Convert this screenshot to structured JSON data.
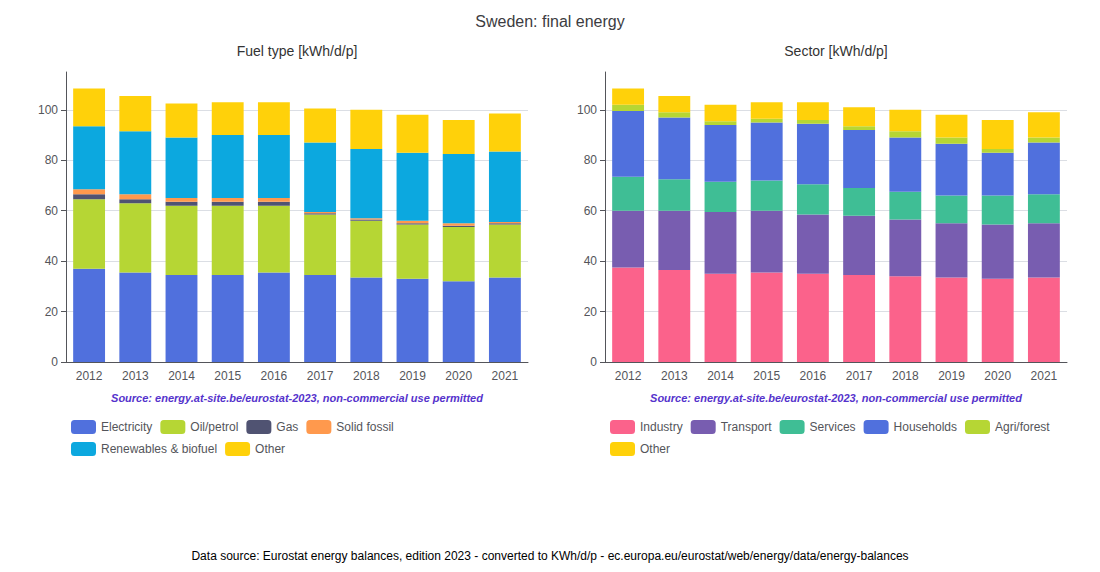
{
  "title": "Sweden: final energy",
  "annotations": [
    "Data source: Eurostat energy balances, edition 2023 - converted to KWh/d/p - ec.europa.eu/eurostat/web/energy/data/energy-balances"
  ],
  "chart_data": [
    {
      "type": "bar",
      "title": "Fuel type [kWh/d/p]",
      "stacked": true,
      "grid": true,
      "legend": "bottom",
      "categories": [
        2012,
        2013,
        2014,
        2015,
        2016,
        2017,
        2018,
        2019,
        2020,
        2021
      ],
      "series": [
        {
          "name": "Electricity",
          "values": [
            37.0,
            35.5,
            34.5,
            34.5,
            35.5,
            34.5,
            33.5,
            33.0,
            32.0,
            33.5
          ]
        },
        {
          "name": "Oil/petrol",
          "values": [
            27.5,
            27.5,
            27.5,
            27.5,
            26.5,
            24.0,
            22.5,
            21.5,
            21.5,
            21.0
          ]
        },
        {
          "name": "Gas",
          "values": [
            2.0,
            1.5,
            1.5,
            1.5,
            1.5,
            0.5,
            0.5,
            0.5,
            0.5,
            0.5
          ]
        },
        {
          "name": "Solid fossil",
          "values": [
            2.0,
            2.0,
            1.5,
            1.5,
            1.5,
            0.5,
            0.5,
            1.0,
            1.0,
            0.5
          ]
        },
        {
          "name": "Renewables & biofuel",
          "values": [
            25.0,
            25.0,
            24.0,
            25.0,
            25.0,
            27.5,
            27.5,
            27.0,
            27.5,
            28.0
          ]
        },
        {
          "name": "Other",
          "values": [
            15.0,
            14.0,
            13.5,
            13.0,
            13.0,
            13.5,
            15.5,
            15.0,
            13.5,
            15.0
          ]
        }
      ],
      "ylim": [
        0,
        115
      ],
      "yticks": [
        0,
        20,
        40,
        60,
        80,
        100
      ],
      "annotations": [
        "Source: energy.at-site.be/eurostat-2023, non-commercial use permitted"
      ]
    },
    {
      "type": "bar",
      "title": "Sector [kWh/d/p]",
      "stacked": true,
      "grid": true,
      "legend": "bottom",
      "categories": [
        2012,
        2013,
        2014,
        2015,
        2016,
        2017,
        2018,
        2019,
        2020,
        2021
      ],
      "series": [
        {
          "name": "Industry",
          "values": [
            37.5,
            36.5,
            35.0,
            35.5,
            35.0,
            34.5,
            34.0,
            33.5,
            33.0,
            33.5
          ]
        },
        {
          "name": "Transport",
          "values": [
            22.5,
            23.5,
            24.5,
            24.5,
            23.5,
            23.5,
            22.5,
            21.5,
            21.5,
            21.5
          ]
        },
        {
          "name": "Services",
          "values": [
            13.5,
            12.5,
            12.0,
            12.0,
            12.0,
            11.0,
            11.0,
            11.0,
            11.5,
            11.5
          ]
        },
        {
          "name": "Households",
          "values": [
            26.0,
            24.5,
            22.5,
            23.0,
            24.0,
            23.0,
            21.5,
            20.5,
            17.0,
            20.5
          ]
        },
        {
          "name": "Agri/forest",
          "values": [
            2.5,
            2.0,
            1.5,
            1.5,
            1.5,
            1.5,
            2.5,
            2.5,
            1.5,
            2.0
          ]
        },
        {
          "name": "Other",
          "values": [
            6.5,
            6.5,
            6.5,
            6.5,
            7.0,
            7.5,
            8.5,
            9.0,
            11.5,
            10.0
          ]
        }
      ],
      "ylim": [
        0,
        115
      ],
      "yticks": [
        0,
        20,
        40,
        60,
        80,
        100
      ],
      "annotations": [
        "Source: energy.at-site.be/eurostat-2023, non-commercial use permitted"
      ]
    }
  ]
}
